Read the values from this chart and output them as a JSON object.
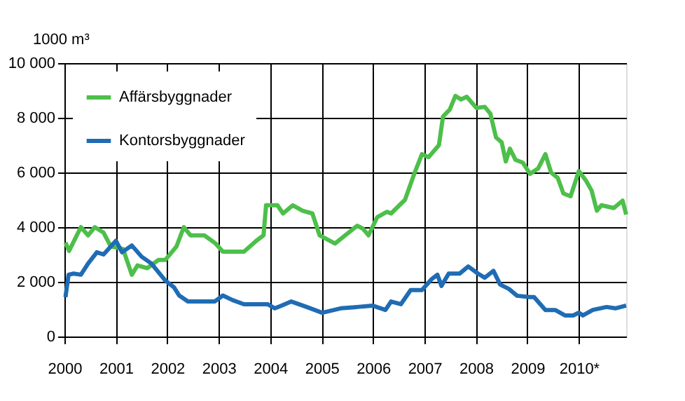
{
  "chart_data": {
    "type": "line",
    "ylabel": "1000 m³",
    "xlim": [
      2000,
      2010.92
    ],
    "xticks": [
      2000,
      2001,
      2002,
      2003,
      2004,
      2005,
      2006,
      2007,
      2008,
      2009,
      {
        "value": 2010,
        "label": "2010*"
      }
    ],
    "ylim": [
      0,
      10000
    ],
    "yticks": [
      0,
      2000,
      4000,
      6000,
      8000,
      10000
    ],
    "grid": true,
    "legend": "top left",
    "marker": "none",
    "line_style": "solid",
    "series": [
      {
        "name": "Affärsbyggnader",
        "color": "#4dbf4a",
        "x": [
          2000.02,
          2000.09,
          2000.32,
          2000.46,
          2000.59,
          2000.76,
          2000.9,
          2001.14,
          2001.31,
          2001.42,
          2001.61,
          2001.83,
          2001.96,
          2002.18,
          2002.32,
          2002.45,
          2002.72,
          2002.94,
          2003.08,
          2003.49,
          2003.73,
          2003.87,
          2003.92,
          2004.14,
          2004.25,
          2004.44,
          2004.63,
          2004.82,
          2004.96,
          2005.26,
          2005.69,
          2005.8,
          2005.91,
          2006.08,
          2006.27,
          2006.35,
          2006.62,
          2006.81,
          2006.95,
          2007.08,
          2007.28,
          2007.36,
          2007.49,
          2007.6,
          2007.71,
          2007.82,
          2008.01,
          2008.17,
          2008.28,
          2008.39,
          2008.5,
          2008.58,
          2008.66,
          2008.77,
          2008.91,
          2009.05,
          2009.21,
          2009.35,
          2009.46,
          2009.59,
          2009.7,
          2009.84,
          2010.0,
          2010.14,
          2010.25,
          2010.35,
          2010.44,
          2010.68,
          2010.85,
          2010.92
        ],
        "values": [
          3440,
          3130,
          4000,
          3700,
          4000,
          3800,
          3300,
          3200,
          2260,
          2600,
          2500,
          2800,
          2800,
          3300,
          4000,
          3700,
          3700,
          3400,
          3100,
          3100,
          3500,
          3700,
          4800,
          4800,
          4500,
          4800,
          4600,
          4500,
          3700,
          3400,
          4050,
          3950,
          3700,
          4360,
          4560,
          4500,
          5000,
          6000,
          6670,
          6560,
          7000,
          8050,
          8300,
          8800,
          8670,
          8770,
          8360,
          8400,
          8150,
          7280,
          7100,
          6400,
          6870,
          6460,
          6360,
          5950,
          6150,
          6670,
          6000,
          5800,
          5230,
          5130,
          6050,
          5700,
          5330,
          4600,
          4800,
          4700,
          4970,
          4460
        ]
      },
      {
        "name": "Kontorsbyggnader",
        "color": "#1f6cb4",
        "x": [
          2000.02,
          2000.08,
          2000.18,
          2000.32,
          2000.46,
          2000.63,
          2000.76,
          2001.0,
          2001.12,
          2001.31,
          2001.5,
          2001.69,
          2001.96,
          2002.13,
          2002.23,
          2002.4,
          2002.59,
          2002.92,
          2003.08,
          2003.27,
          2003.49,
          2003.95,
          2004.09,
          2004.22,
          2004.41,
          2004.71,
          2005.01,
          2005.37,
          2005.69,
          2005.99,
          2006.24,
          2006.35,
          2006.54,
          2006.73,
          2006.95,
          2007.14,
          2007.25,
          2007.33,
          2007.47,
          2007.68,
          2007.85,
          2008.04,
          2008.17,
          2008.34,
          2008.47,
          2008.64,
          2008.8,
          2009.05,
          2009.13,
          2009.35,
          2009.54,
          2009.73,
          2009.89,
          2010.0,
          2010.08,
          2010.27,
          2010.54,
          2010.71,
          2010.92
        ],
        "values": [
          1440,
          2260,
          2300,
          2260,
          2670,
          3080,
          3000,
          3500,
          3080,
          3330,
          2920,
          2670,
          2050,
          1800,
          1500,
          1280,
          1280,
          1280,
          1500,
          1330,
          1180,
          1180,
          1030,
          1130,
          1280,
          1080,
          870,
          1030,
          1080,
          1130,
          970,
          1280,
          1180,
          1700,
          1700,
          2100,
          2260,
          1850,
          2300,
          2300,
          2560,
          2300,
          2150,
          2400,
          1900,
          1740,
          1490,
          1440,
          1440,
          970,
          970,
          770,
          770,
          870,
          770,
          970,
          1080,
          1030,
          1130
        ]
      }
    ]
  }
}
